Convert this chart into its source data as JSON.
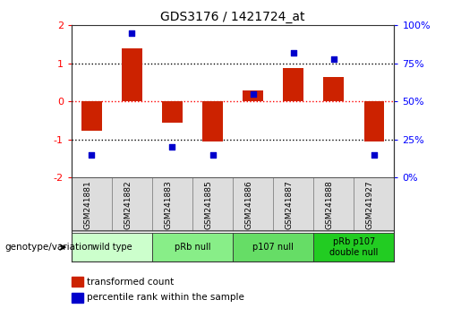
{
  "title": "GDS3176 / 1421724_at",
  "samples": [
    "GSM241881",
    "GSM241882",
    "GSM241883",
    "GSM241885",
    "GSM241886",
    "GSM241887",
    "GSM241888",
    "GSM241927"
  ],
  "red_bars": [
    -0.78,
    1.4,
    -0.55,
    -1.05,
    0.28,
    0.88,
    0.65,
    -1.05
  ],
  "blue_dots_pct": [
    15,
    95,
    20,
    15,
    55,
    82,
    78,
    15
  ],
  "groups": [
    {
      "label": "wild type",
      "span": [
        0,
        2
      ],
      "color": "#ccffcc"
    },
    {
      "label": "pRb null",
      "span": [
        2,
        4
      ],
      "color": "#88ee88"
    },
    {
      "label": "p107 null",
      "span": [
        4,
        6
      ],
      "color": "#66dd66"
    },
    {
      "label": "pRb p107\ndouble null",
      "span": [
        6,
        8
      ],
      "color": "#22cc22"
    }
  ],
  "bar_color": "#cc2200",
  "dot_color": "#0000cc",
  "bar_width": 0.5,
  "legend_label_red": "transformed count",
  "legend_label_blue": "percentile rank within the sample",
  "genotype_label": "genotype/variation",
  "left_ytick_color": "red",
  "right_ytick_color": "blue",
  "sample_box_color": "#dddddd",
  "sample_box_edge": "#888888"
}
